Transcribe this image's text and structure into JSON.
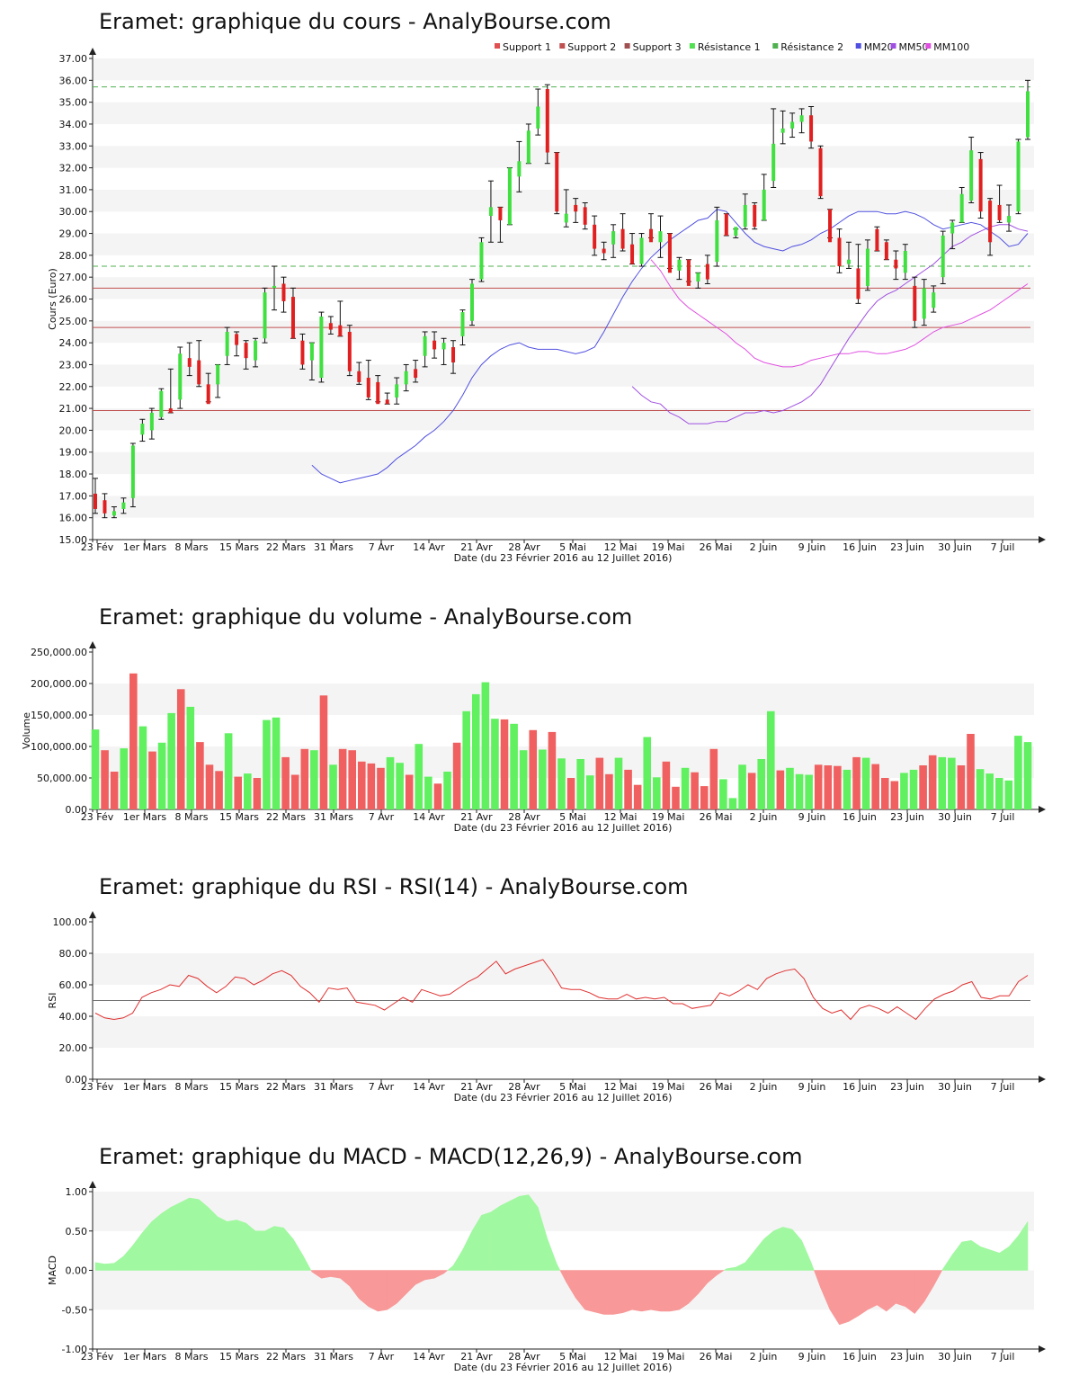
{
  "chart_data": [
    {
      "type": "candlestick",
      "title": "Eramet: graphique du cours - AnalyBourse.com",
      "xlabel": "Date (du 23 Février 2016 au 12 Juillet 2016)",
      "ylabel": "Cours (Euro)",
      "ylim": [
        15,
        37
      ],
      "yticks": [
        "15.00",
        "16.00",
        "17.00",
        "18.00",
        "19.00",
        "20.00",
        "21.00",
        "22.00",
        "23.00",
        "24.00",
        "25.00",
        "26.00",
        "27.00",
        "28.00",
        "29.00",
        "30.00",
        "31.00",
        "32.00",
        "33.00",
        "34.00",
        "35.00",
        "36.00",
        "37.00"
      ],
      "xticks": [
        "23 Fév",
        "1er Mars",
        "8 Mars",
        "15 Mars",
        "22 Mars",
        "31 Mars",
        "7 Avr",
        "14 Avr",
        "21 Avr",
        "28 Avr",
        "5 Mai",
        "12 Mai",
        "19 Mai",
        "26 Mai",
        "2 Juin",
        "9 Juin",
        "16 Juin",
        "23 Juin",
        "30 Juin",
        "7 Juil"
      ],
      "legend_position": "top-right",
      "legend": [
        {
          "label": "Support 1",
          "color": "#e05050"
        },
        {
          "label": "Support 2",
          "color": "#c05050"
        },
        {
          "label": "Support 3",
          "color": "#a05050"
        },
        {
          "label": "Résistance 1",
          "color": "#50e050"
        },
        {
          "label": "Résistance 2",
          "color": "#50b050"
        },
        {
          "label": "MM20",
          "color": "#5050e0"
        },
        {
          "label": "MM50",
          "color": "#a050e0"
        },
        {
          "label": "MM100",
          "color": "#e050e0"
        }
      ],
      "levels": {
        "support_1": 26.5,
        "support_2": 24.7,
        "support_3": 20.9,
        "resistance_1": 35.7,
        "resistance_2": 27.5
      },
      "colors": {
        "up": "#40e040",
        "down": "#e02020",
        "support": "#c05050",
        "resistance": "#50b050",
        "mm20": "#5050e0",
        "mm50": "#a050e0",
        "mm100": "#e050e0"
      },
      "ohlc": [
        [
          17.1,
          17.8,
          16.2,
          16.4
        ],
        [
          16.8,
          17.1,
          16.0,
          16.2
        ],
        [
          16.1,
          16.5,
          16.0,
          16.3
        ],
        [
          16.4,
          16.9,
          16.2,
          16.7
        ],
        [
          16.9,
          19.4,
          16.5,
          19.3
        ],
        [
          19.8,
          20.5,
          19.5,
          20.3
        ],
        [
          20.0,
          21.0,
          19.6,
          20.8
        ],
        [
          20.6,
          21.9,
          20.5,
          21.8
        ],
        [
          21.0,
          22.8,
          20.8,
          20.8
        ],
        [
          21.4,
          23.8,
          21.0,
          23.5
        ],
        [
          23.3,
          24.0,
          22.5,
          22.9
        ],
        [
          23.2,
          24.1,
          22.0,
          22.1
        ],
        [
          22.1,
          22.6,
          21.3,
          21.2
        ],
        [
          22.1,
          23.0,
          21.5,
          23.0
        ],
        [
          23.4,
          24.7,
          23.0,
          24.5
        ],
        [
          24.4,
          24.5,
          23.4,
          23.9
        ],
        [
          24.0,
          24.1,
          22.8,
          23.3
        ],
        [
          23.2,
          24.2,
          22.9,
          24.1
        ],
        [
          24.2,
          26.5,
          24.0,
          26.3
        ],
        [
          26.5,
          27.5,
          25.5,
          26.6
        ],
        [
          26.7,
          27.0,
          25.4,
          25.9
        ],
        [
          26.1,
          26.5,
          24.2,
          24.2
        ],
        [
          24.1,
          24.4,
          22.8,
          23.0
        ],
        [
          23.2,
          24.0,
          22.3,
          24.0
        ],
        [
          22.4,
          25.4,
          22.2,
          25.2
        ],
        [
          24.9,
          25.2,
          24.4,
          24.6
        ],
        [
          24.8,
          25.9,
          24.3,
          24.3
        ],
        [
          24.5,
          24.8,
          22.5,
          22.7
        ],
        [
          22.7,
          23.1,
          22.1,
          22.2
        ],
        [
          22.4,
          23.2,
          21.4,
          21.5
        ],
        [
          22.2,
          22.5,
          21.3,
          21.2
        ],
        [
          21.4,
          21.7,
          21.2,
          21.2
        ],
        [
          21.5,
          22.4,
          21.2,
          22.1
        ],
        [
          22.1,
          23.0,
          21.8,
          22.7
        ],
        [
          22.8,
          23.2,
          22.2,
          22.4
        ],
        [
          23.4,
          24.5,
          22.9,
          24.3
        ],
        [
          24.1,
          24.5,
          23.3,
          23.7
        ],
        [
          23.7,
          24.2,
          23.0,
          24.0
        ],
        [
          23.8,
          24.1,
          22.6,
          23.1
        ],
        [
          24.3,
          25.5,
          23.9,
          25.4
        ],
        [
          25.0,
          26.9,
          24.8,
          26.7
        ],
        [
          26.9,
          28.8,
          26.8,
          28.6
        ],
        [
          29.8,
          31.4,
          28.6,
          30.2
        ],
        [
          30.2,
          30.2,
          28.6,
          29.6
        ],
        [
          29.4,
          32.0,
          29.4,
          32.0
        ],
        [
          31.6,
          33.2,
          30.9,
          32.3
        ],
        [
          32.2,
          34.0,
          32.2,
          33.7
        ],
        [
          33.8,
          35.6,
          33.5,
          34.8
        ],
        [
          35.6,
          35.8,
          32.2,
          32.7
        ],
        [
          32.7,
          32.7,
          29.9,
          30.0
        ],
        [
          29.5,
          31.0,
          29.3,
          29.9
        ],
        [
          30.3,
          30.6,
          29.5,
          30.0
        ],
        [
          30.2,
          30.4,
          29.2,
          29.4
        ],
        [
          29.4,
          29.8,
          28.0,
          28.3
        ],
        [
          28.3,
          28.6,
          27.8,
          28.1
        ],
        [
          28.5,
          29.4,
          27.9,
          29.1
        ],
        [
          29.2,
          29.9,
          28.2,
          28.3
        ],
        [
          28.5,
          29.0,
          27.6,
          27.6
        ],
        [
          27.6,
          29.0,
          27.5,
          28.8
        ],
        [
          29.2,
          29.9,
          28.8,
          28.6
        ],
        [
          28.6,
          29.8,
          27.9,
          29.1
        ],
        [
          29.0,
          29.0,
          27.4,
          27.2
        ],
        [
          27.3,
          27.9,
          26.9,
          27.8
        ],
        [
          27.8,
          27.8,
          26.8,
          26.6
        ],
        [
          26.8,
          27.2,
          26.5,
          27.2
        ],
        [
          27.6,
          28.0,
          26.7,
          26.9
        ],
        [
          27.7,
          30.2,
          27.5,
          29.6
        ],
        [
          29.9,
          29.9,
          28.9,
          28.9
        ],
        [
          28.9,
          29.2,
          28.8,
          29.3
        ],
        [
          29.3,
          30.8,
          29.2,
          30.3
        ],
        [
          30.3,
          30.4,
          29.2,
          29.3
        ],
        [
          29.6,
          31.7,
          29.6,
          31.0
        ],
        [
          31.4,
          34.7,
          31.1,
          33.1
        ],
        [
          33.6,
          34.6,
          33.1,
          33.8
        ],
        [
          33.8,
          34.5,
          33.4,
          34.1
        ],
        [
          34.1,
          34.7,
          33.6,
          34.4
        ],
        [
          34.4,
          34.8,
          32.9,
          33.2
        ],
        [
          32.9,
          33.0,
          30.6,
          30.7
        ],
        [
          30.1,
          30.1,
          28.8,
          28.6
        ],
        [
          28.8,
          29.2,
          27.2,
          27.5
        ],
        [
          27.6,
          28.6,
          27.4,
          27.8
        ],
        [
          27.4,
          28.5,
          25.8,
          26.0
        ],
        [
          26.6,
          28.7,
          26.4,
          28.3
        ],
        [
          29.2,
          29.3,
          28.2,
          28.2
        ],
        [
          28.6,
          28.7,
          27.8,
          27.8
        ],
        [
          27.8,
          28.2,
          26.9,
          27.4
        ],
        [
          27.2,
          28.5,
          26.9,
          28.2
        ],
        [
          26.6,
          27.0,
          24.7,
          25.0
        ],
        [
          25.1,
          26.9,
          24.8,
          26.5
        ],
        [
          25.6,
          26.6,
          25.4,
          26.3
        ],
        [
          27.0,
          29.1,
          26.7,
          28.9
        ],
        [
          29.0,
          29.6,
          28.3,
          29.5
        ],
        [
          29.5,
          31.1,
          29.5,
          30.8
        ],
        [
          30.5,
          33.4,
          30.4,
          32.8
        ],
        [
          32.4,
          32.7,
          29.7,
          30.0
        ],
        [
          30.5,
          30.6,
          28.0,
          28.6
        ],
        [
          30.3,
          31.2,
          29.5,
          29.6
        ],
        [
          29.5,
          30.3,
          29.1,
          29.8
        ],
        [
          30.0,
          33.3,
          29.9,
          33.2
        ],
        [
          33.4,
          36.0,
          33.3,
          35.5
        ]
      ],
      "mm20": [
        18.4,
        18.0,
        17.8,
        17.6,
        17.7,
        17.8,
        17.9,
        18.0,
        18.3,
        18.7,
        19.0,
        19.3,
        19.7,
        20.0,
        20.4,
        20.9,
        21.6,
        22.4,
        23.0,
        23.4,
        23.7,
        23.9,
        24.0,
        23.8,
        23.7,
        23.7,
        23.7,
        23.6,
        23.5,
        23.6,
        23.8,
        24.5,
        25.3,
        26.1,
        26.8,
        27.4,
        27.9,
        28.3,
        28.7,
        29.0,
        29.3,
        29.6,
        29.7,
        30.1,
        30.0,
        29.5,
        29.0,
        28.6,
        28.4,
        28.3,
        28.2,
        28.4,
        28.5,
        28.7,
        29.0,
        29.2,
        29.5,
        29.8,
        30.0,
        30.0,
        30.0,
        29.9,
        29.9,
        30.0,
        29.9,
        29.7,
        29.4,
        29.2,
        29.3,
        29.4,
        29.5,
        29.4,
        29.1,
        28.8,
        28.4,
        28.5,
        29.0
      ],
      "mm50": [
        22.0,
        21.6,
        21.3,
        21.2,
        20.8,
        20.6,
        20.3,
        20.3,
        20.3,
        20.4,
        20.4,
        20.6,
        20.8,
        20.8,
        20.9,
        20.8,
        20.9,
        21.1,
        21.3,
        21.6,
        22.1,
        22.8,
        23.5,
        24.2,
        24.8,
        25.4,
        25.9,
        26.2,
        26.4,
        26.7,
        27.0,
        27.3,
        27.6,
        28.0,
        28.4,
        28.6,
        28.9,
        29.1,
        29.3,
        29.4,
        29.4,
        29.2,
        29.1
      ],
      "mm100": [
        27.8,
        27.3,
        26.6,
        26.0,
        25.6,
        25.3,
        25.0,
        24.7,
        24.4,
        24.0,
        23.7,
        23.3,
        23.1,
        23.0,
        22.9,
        22.9,
        23.0,
        23.2,
        23.3,
        23.4,
        23.5,
        23.5,
        23.6,
        23.6,
        23.5,
        23.5,
        23.6,
        23.7,
        23.9,
        24.2,
        24.5,
        24.7,
        24.8,
        24.9,
        25.1,
        25.3,
        25.5,
        25.8,
        26.1,
        26.4,
        26.7
      ]
    },
    {
      "type": "bar",
      "title": "Eramet: graphique du volume - AnalyBourse.com",
      "xlabel": "Date (du 23 Février 2016 au 12 Juillet 2016)",
      "ylabel": "Volume",
      "ylim": [
        0,
        250000
      ],
      "yticks": [
        "0.00",
        "50,000.00",
        "100,000.00",
        "150,000.00",
        "200,000.00",
        "250,000.00"
      ],
      "xticks": [
        "23 Fév",
        "1er Mars",
        "8 Mars",
        "15 Mars",
        "22 Mars",
        "31 Mars",
        "7 Avr",
        "14 Avr",
        "21 Avr",
        "28 Avr",
        "5 Mai",
        "12 Mai",
        "19 Mai",
        "26 Mai",
        "2 Juin",
        "9 Juin",
        "16 Juin",
        "23 Juin",
        "30 Juin",
        "7 Juil"
      ],
      "colors": {
        "up": "#60f060",
        "down": "#f06060"
      },
      "values": [
        127000,
        94000,
        60000,
        97000,
        216000,
        132000,
        92000,
        106000,
        153000,
        191000,
        163000,
        107000,
        71000,
        61000,
        121000,
        52000,
        57000,
        50000,
        142000,
        146000,
        83000,
        55000,
        96000,
        94000,
        181000,
        71000,
        96000,
        94000,
        76000,
        73000,
        66000,
        83000,
        74000,
        55000,
        104000,
        52000,
        41000,
        60000,
        106000,
        156000,
        183000,
        202000,
        144000,
        143000,
        136000,
        94000,
        126000,
        95000,
        123000,
        81000,
        50000,
        80000,
        54000,
        82000,
        56000,
        82000,
        63000,
        39000,
        115000,
        51000,
        76000,
        36000,
        66000,
        59000,
        37000,
        96000,
        48000,
        18000,
        71000,
        58000,
        80000,
        156000,
        62000,
        66000,
        56000,
        55000,
        71000,
        70000,
        69000,
        63000,
        83000,
        82000,
        72000,
        50000,
        45000,
        58000,
        63000,
        70000,
        86000,
        83000,
        82000,
        70000,
        120000,
        64000,
        57000,
        50000,
        46000,
        117000,
        107000
      ],
      "directions": "uddududuududddududuudddududdddduuduududuuuuduudududuuddudduudduddduuuduuduuudddududdduudduudduuuuuudddduu"
    },
    {
      "type": "line",
      "title": "Eramet: graphique du RSI - RSI(14) - AnalyBourse.com",
      "xlabel": "Date (du 23 Février 2016 au 12 Juillet 2016)",
      "ylabel": "RSI",
      "ylim": [
        0,
        100
      ],
      "yticks": [
        "0.00",
        "20.00",
        "40.00",
        "60.00",
        "80.00",
        "100.00"
      ],
      "xticks": [
        "23 Fév",
        "1er Mars",
        "8 Mars",
        "15 Mars",
        "22 Mars",
        "31 Mars",
        "7 Avr",
        "14 Avr",
        "21 Avr",
        "28 Avr",
        "5 Mai",
        "12 Mai",
        "19 Mai",
        "26 Mai",
        "2 Juin",
        "9 Juin",
        "16 Juin",
        "23 Juin",
        "30 Juin",
        "7 Juil"
      ],
      "reference_line": 50,
      "colors": {
        "line": "#e03030",
        "reference": "#707070"
      },
      "values": [
        42,
        39,
        38,
        39,
        42,
        52,
        55,
        57,
        60,
        59,
        66,
        64,
        59,
        55,
        59,
        65,
        64,
        60,
        63,
        67,
        69,
        66,
        59,
        55,
        49,
        58,
        57,
        58,
        49,
        48,
        47,
        44,
        48,
        52,
        49,
        57,
        55,
        53,
        54,
        58,
        62,
        65,
        70,
        75,
        67,
        70,
        72,
        74,
        76,
        68,
        58,
        57,
        57,
        55,
        52,
        51,
        51,
        54,
        51,
        52,
        51,
        52,
        48,
        48,
        45,
        46,
        47,
        55,
        53,
        56,
        60,
        57,
        64,
        67,
        69,
        70,
        64,
        52,
        45,
        42,
        44,
        38,
        45,
        47,
        45,
        42,
        46,
        42,
        38,
        45,
        51,
        54,
        56,
        60,
        62,
        52,
        51,
        53,
        53,
        62,
        66
      ]
    },
    {
      "type": "area",
      "title": "Eramet: graphique du MACD - MACD(12,26,9) - AnalyBourse.com",
      "xlabel": "Date (du 23 Février 2016 au 12 Juillet 2016)",
      "ylabel": "MACD",
      "ylim": [
        -1,
        1
      ],
      "yticks": [
        "-1.00",
        "-0.50",
        "0.00",
        "0.50",
        "1.00"
      ],
      "xticks": [
        "23 Fév",
        "1er Mars",
        "8 Mars",
        "15 Mars",
        "22 Mars",
        "31 Mars",
        "7 Avr",
        "14 Avr",
        "21 Avr",
        "28 Avr",
        "5 Mai",
        "12 Mai",
        "19 Mai",
        "26 Mai",
        "2 Juin",
        "9 Juin",
        "16 Juin",
        "23 Juin",
        "30 Juin",
        "7 Juil"
      ],
      "colors": {
        "positive": "#a0f8a0",
        "negative": "#f89898"
      },
      "values": [
        0.1,
        0.08,
        0.09,
        0.18,
        0.32,
        0.48,
        0.62,
        0.72,
        0.8,
        0.86,
        0.92,
        0.9,
        0.8,
        0.68,
        0.62,
        0.64,
        0.6,
        0.5,
        0.5,
        0.56,
        0.54,
        0.4,
        0.2,
        -0.02,
        -0.1,
        -0.08,
        -0.1,
        -0.2,
        -0.36,
        -0.46,
        -0.52,
        -0.5,
        -0.42,
        -0.3,
        -0.18,
        -0.12,
        -0.1,
        -0.04,
        0.06,
        0.26,
        0.5,
        0.7,
        0.74,
        0.82,
        0.88,
        0.94,
        0.96,
        0.8,
        0.4,
        0.08,
        -0.15,
        -0.35,
        -0.5,
        -0.53,
        -0.56,
        -0.56,
        -0.54,
        -0.5,
        -0.52,
        -0.5,
        -0.52,
        -0.52,
        -0.5,
        -0.42,
        -0.3,
        -0.16,
        -0.06,
        0.02,
        0.04,
        0.1,
        0.25,
        0.4,
        0.5,
        0.55,
        0.52,
        0.38,
        0.1,
        -0.22,
        -0.5,
        -0.69,
        -0.65,
        -0.58,
        -0.5,
        -0.44,
        -0.52,
        -0.42,
        -0.46,
        -0.55,
        -0.4,
        -0.2,
        0.02,
        0.2,
        0.36,
        0.38,
        0.3,
        0.26,
        0.22,
        0.3,
        0.44,
        0.62
      ]
    }
  ]
}
